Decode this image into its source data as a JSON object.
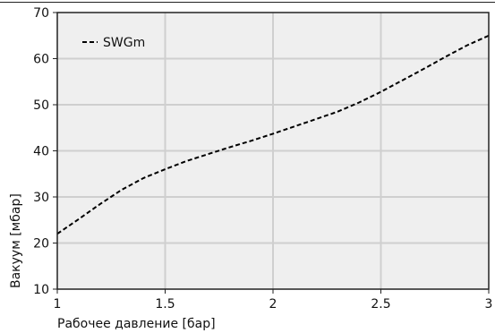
{
  "chart_data": {
    "type": "line",
    "xlabel": "Рабочее давление [бар]",
    "ylabel": "Вакуум [мбар]",
    "xlim": [
      1,
      3
    ],
    "ylim": [
      10,
      70
    ],
    "x_ticks": [
      1,
      1.5,
      2,
      2.5,
      3
    ],
    "x_tick_labels": [
      "1",
      "1.5",
      "2",
      "2.5",
      "3"
    ],
    "y_ticks": [
      10,
      20,
      30,
      40,
      50,
      60,
      70
    ],
    "y_tick_labels": [
      "10",
      "20",
      "30",
      "40",
      "50",
      "60",
      "70"
    ],
    "grid": true,
    "legend_position": "top-left",
    "series": [
      {
        "name": "SWGm",
        "style": "dashed",
        "color": "#000000",
        "x": [
          1.0,
          1.1,
          1.2,
          1.3,
          1.4,
          1.5,
          1.6,
          1.7,
          1.8,
          1.9,
          2.0,
          2.1,
          2.2,
          2.3,
          2.4,
          2.5,
          2.6,
          2.7,
          2.8,
          2.9,
          3.0
        ],
        "y": [
          22.0,
          25.2,
          28.5,
          31.6,
          34.1,
          36.0,
          37.8,
          39.3,
          40.8,
          42.2,
          43.7,
          45.3,
          46.9,
          48.5,
          50.5,
          52.8,
          55.3,
          57.8,
          60.4,
          62.9,
          65.0
        ]
      }
    ]
  },
  "colors": {
    "plot_background": "#efefef",
    "grid": "#cfcfcf",
    "axis": "#222222",
    "line": "#000000"
  }
}
